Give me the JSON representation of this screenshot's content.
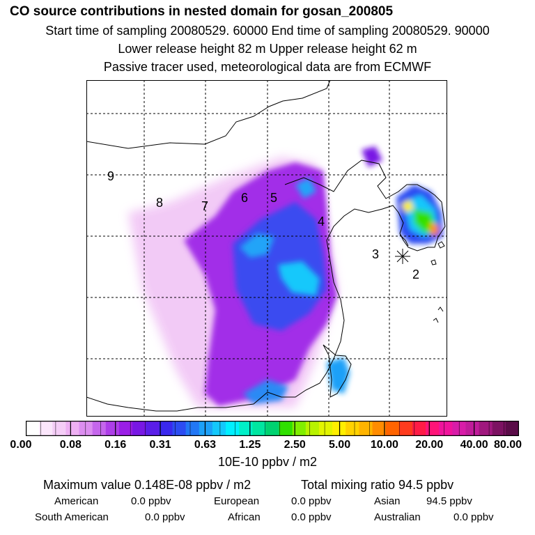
{
  "header": {
    "title": "CO  source contributions in nested domain for gosan_200805",
    "line1": "Start time of sampling 20080529. 60000     End time of sampling 20080529. 90000",
    "line2": "Lower release height   82 m          Upper release height   62 m",
    "line3": "Passive tracer used, meteorological data are from ECMWF"
  },
  "map": {
    "region_labels": [
      "9",
      "8",
      "7",
      "6",
      "5",
      "4",
      "3",
      "2"
    ],
    "receptor_marker": "receptor-star-icon"
  },
  "colorbar": {
    "tick_labels": [
      "0.00",
      "0.08",
      "0.16",
      "0.31",
      "0.63",
      "1.25",
      "2.50",
      "5.00",
      "10.00",
      "20.00",
      "40.00",
      "80.00"
    ],
    "colors": [
      "#ffffff",
      "#fbe6fb",
      "#f5cdf7",
      "#eeb0f3",
      "#dc8ef0",
      "#c566ec",
      "#ad3ee8",
      "#9a1ee6",
      "#7818e4",
      "#5a1ee8",
      "#3a28ee",
      "#2c4cf2",
      "#2277f5",
      "#1ca0f8",
      "#14c8fb",
      "#00f0ff",
      "#00f0c8",
      "#00e6a0",
      "#00d270",
      "#30e000",
      "#80ee00",
      "#b8f200",
      "#e2f400",
      "#ffef00",
      "#ffd200",
      "#ffb400",
      "#ff8c00",
      "#ff6400",
      "#ff3c1e",
      "#ff1c46",
      "#ff1478",
      "#f0149c",
      "#d81ca8",
      "#c01c9a",
      "#a0187e",
      "#7c1262",
      "#5a0c48"
    ],
    "unit": "10E-10 ppbv / m2"
  },
  "summary": {
    "max_label": "Maximum value  0.148E-08 ppbv / m2",
    "total_label": "Total mixing ratio       94.5 ppbv",
    "regions": [
      {
        "name": "American",
        "value": "0.0 ppbv"
      },
      {
        "name": "European",
        "value": "0.0 ppbv"
      },
      {
        "name": "Asian",
        "value": "94.5 ppbv"
      },
      {
        "name": "South American",
        "value": "0.0 ppbv"
      },
      {
        "name": "African",
        "value": "0.0 ppbv"
      },
      {
        "name": "Australian",
        "value": "0.0 ppbv"
      }
    ]
  }
}
